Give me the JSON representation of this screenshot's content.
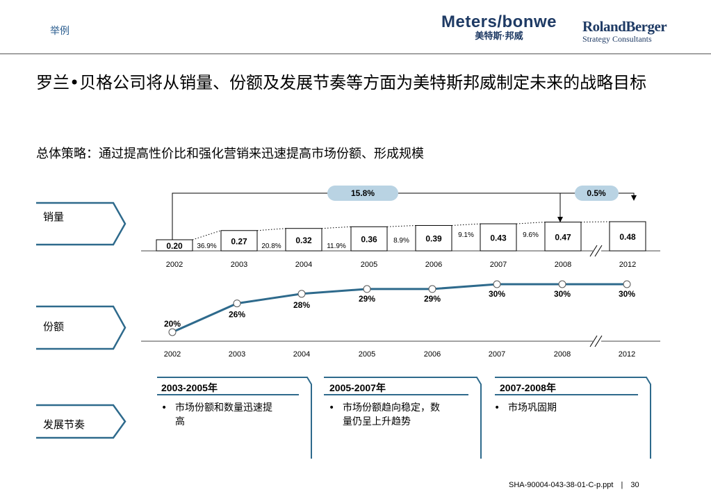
{
  "header": {
    "tag": "举例",
    "logo_meters_line1": "Meters/bonwe",
    "logo_meters_line2": "美特斯·邦威",
    "logo_rb_line1": "RolandBerger",
    "logo_rb_line2": "Strategy Consultants"
  },
  "title": "罗兰•贝格公司将从销量、份额及发展节奏等方面为美特斯邦威制定未来的战略目标",
  "subtitle": "总体策略：通过提高性价比和强化营销来迅速提高市场份额、形成规模",
  "rows": {
    "sales_label": "销量",
    "share_label": "份额",
    "rhythm_label": "发展节奏"
  },
  "chart_data": [
    {
      "type": "bar",
      "name": "销量",
      "categories": [
        "2002",
        "2003",
        "2004",
        "2005",
        "2006",
        "2007",
        "2008",
        "2012"
      ],
      "values": [
        0.2,
        0.27,
        0.32,
        0.36,
        0.39,
        0.43,
        0.47,
        0.48
      ],
      "value_labels": [
        "0.20",
        "0.27",
        "0.32",
        "0.36",
        "0.39",
        "0.43",
        "0.47",
        "0.48"
      ],
      "growth_labels": [
        "36.9%",
        "20.8%",
        "11.9%",
        "8.9%",
        "9.1%",
        "9.6%"
      ],
      "callouts": [
        {
          "label": "15.8%",
          "from": "2002",
          "to": "2008"
        },
        {
          "label": "0.5%",
          "from": "2008",
          "to": "2012"
        }
      ],
      "axis_break_between": [
        "2008",
        "2012"
      ]
    },
    {
      "type": "line",
      "name": "份额",
      "categories": [
        "2002",
        "2003",
        "2004",
        "2005",
        "2006",
        "2007",
        "2008",
        "2012"
      ],
      "values": [
        20,
        26,
        28,
        29,
        29,
        30,
        30,
        30
      ],
      "value_labels": [
        "20%",
        "26%",
        "28%",
        "29%",
        "29%",
        "30%",
        "30%",
        "30%"
      ],
      "line_color": "#2e6a8c",
      "axis_break_between": [
        "2008",
        "2012"
      ]
    }
  ],
  "phases": [
    {
      "head": "2003-2005年",
      "bullets": [
        "市场份额和数量迅速提高"
      ]
    },
    {
      "head": "2005-2007年",
      "bullets": [
        "市场份额趋向稳定，数量仍呈上升趋势"
      ]
    },
    {
      "head": "2007-2008年",
      "bullets": [
        "市场巩固期"
      ]
    }
  ],
  "footer": {
    "file": "SHA-90004-043-38-01-C-p.ppt",
    "sep": "|",
    "page": "30"
  },
  "colors": {
    "accent": "#2e6a8c",
    "pill": "#b9d3e3",
    "brand_blue": "#1e3a64"
  }
}
